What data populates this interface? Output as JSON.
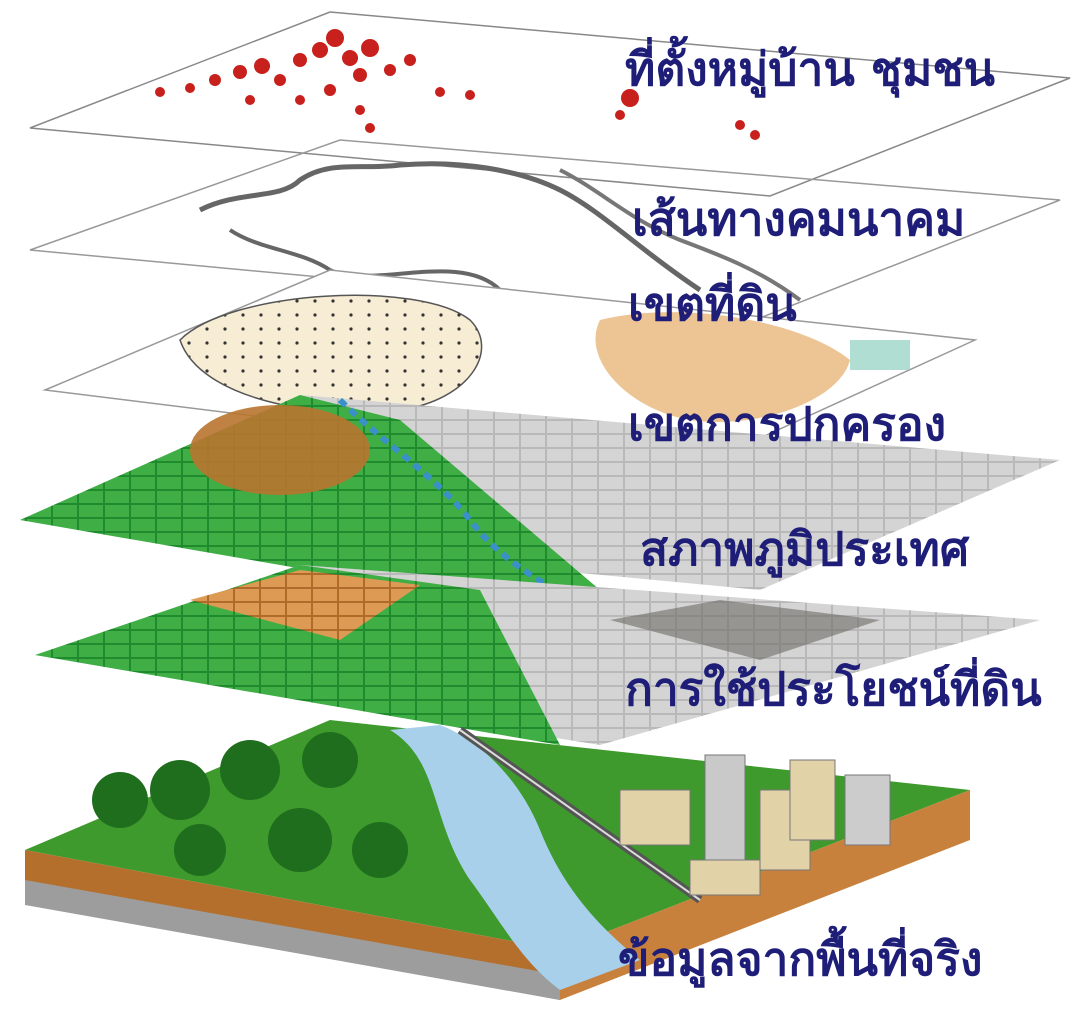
{
  "layers": [
    {
      "label": "ที่ตั้งหมู่บ้าน ชุมชน"
    },
    {
      "label": "เส้นทางคมนาคม"
    },
    {
      "label": "เขตที่ดิน"
    },
    {
      "label": "เขตการปกครอง"
    },
    {
      "label": "สภาพภูมิประเทศ"
    },
    {
      "label": "การใช้ประโยชน์ที่ดิน"
    },
    {
      "label": "ข้อมูลจากพื้นที่จริง"
    }
  ]
}
